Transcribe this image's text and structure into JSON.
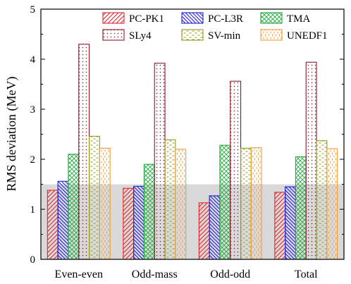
{
  "chart_data": {
    "type": "bar",
    "title": "",
    "xlabel": "",
    "ylabel": "RMS deviation (MeV)",
    "ylim": [
      0,
      5
    ],
    "yticks": [
      "0",
      "1",
      "2",
      "3",
      "4",
      "5"
    ],
    "grid": false,
    "shaded_band": {
      "from": 0,
      "to": 1.5,
      "color": "#d9d9d9"
    },
    "legend_position": "top-right",
    "categories": [
      "Even-even",
      "Odd-mass",
      "Odd-odd",
      "Total"
    ],
    "series": [
      {
        "name": "PC-PK1",
        "color": "#e8262a",
        "pattern": "diag-up",
        "values": [
          1.38,
          1.42,
          1.13,
          1.34
        ]
      },
      {
        "name": "PC-L3R",
        "color": "#1f1fe0",
        "pattern": "diag-down",
        "values": [
          1.56,
          1.46,
          1.27,
          1.45
        ]
      },
      {
        "name": "TMA",
        "color": "#21a83a",
        "pattern": "cross",
        "values": [
          2.1,
          1.9,
          2.28,
          2.05
        ]
      },
      {
        "name": "SLy4",
        "color": "#8b1a2b",
        "pattern": "dots",
        "values": [
          4.3,
          3.92,
          3.56,
          3.94
        ]
      },
      {
        "name": "SV-min",
        "color": "#8f9a18",
        "pattern": "dash",
        "values": [
          2.46,
          2.39,
          2.22,
          2.37
        ]
      },
      {
        "name": "UNEDF1",
        "color": "#f39a35",
        "pattern": "vdash",
        "values": [
          2.22,
          2.2,
          2.23,
          2.21
        ]
      }
    ]
  }
}
